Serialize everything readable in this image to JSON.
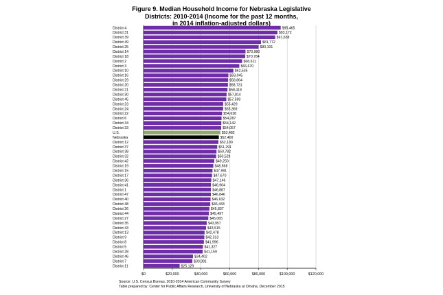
{
  "chart_data": {
    "type": "bar",
    "orientation": "horizontal",
    "title_lines": [
      "Figure 9. Median Household Income for Nebraska Legislative",
      "Districts: 2010-2014 (Income for the past 12 months,",
      "in 2014 inflation-adjusted dollars)"
    ],
    "categories": [
      "District 4",
      "District 31",
      "District 39",
      "District 49",
      "District 25",
      "District 14",
      "District 18",
      "District 2",
      "District 3",
      "District 10",
      "District 16",
      "District 29",
      "District 20",
      "District 21",
      "District 30",
      "District 45",
      "District 23",
      "District 24",
      "District 22",
      "District 6",
      "District 34",
      "District 33",
      "U.S.",
      "Nebraska",
      "District 12",
      "District 37",
      "District 38",
      "District 32",
      "District 42",
      "District 19",
      "District 15",
      "District 17",
      "District 36",
      "District 41",
      "District 1",
      "District 47",
      "District 40",
      "District 48",
      "District 26",
      "District 44",
      "District 27",
      "District 35",
      "District 43",
      "District 13",
      "District 9",
      "District 8",
      "District 5",
      "District 28",
      "District 46",
      "District 7",
      "District 11"
    ],
    "values": [
      95465,
      93172,
      91638,
      81772,
      80101,
      70980,
      70784,
      68611,
      66670,
      62535,
      59045,
      58864,
      58731,
      58418,
      57814,
      57599,
      55429,
      55369,
      54638,
      54287,
      54142,
      54057,
      53482,
      52400,
      52100,
      51291,
      50782,
      50529,
      49250,
      48568,
      47991,
      47670,
      47146,
      46904,
      46887,
      46846,
      46632,
      46443,
      45837,
      45497,
      45065,
      43957,
      43515,
      42478,
      42313,
      41996,
      41327,
      41159,
      34402,
      33981,
      25129
    ],
    "value_labels": [
      "$95,465",
      "$93,172",
      "$91,638",
      "$81,772",
      "$80,101",
      "$70,980",
      "$70,784",
      "$68,611",
      "$66,670",
      "$62,535",
      "$59,045",
      "$58,864",
      "$58,731",
      "$58,418",
      "$57,814",
      "$57,599",
      "$55,429",
      "$55,369",
      "$54,638",
      "$54,287",
      "$54,142",
      "$54,057",
      "$53,482",
      "$52,400",
      "$52,100",
      "$51,291",
      "$50,782",
      "$50,529",
      "$49,250",
      "$48,568",
      "$47,991",
      "$47,670",
      "$47,146",
      "$46,904",
      "$46,887",
      "$46,846",
      "$46,632",
      "$46,443",
      "$45,837",
      "$45,497",
      "$45,065",
      "$43,957",
      "$43,515",
      "$42,478",
      "$42,313",
      "$41,996",
      "$41,327",
      "$41,159",
      "$34,402",
      "$33,981",
      "$25,129"
    ],
    "highlight": {
      "U.S.": "#8fa86e",
      "Nebraska": "#000000"
    },
    "bar_color": "#6f2da8",
    "xlim": [
      0,
      120000
    ],
    "xticks": [
      0,
      20000,
      40000,
      60000,
      80000,
      100000,
      120000
    ],
    "xtick_labels": [
      "$0",
      "$20,000",
      "$40,000",
      "$60,000",
      "$80,000",
      "$100,000",
      "$120,000"
    ],
    "grid": true
  },
  "source_lines": [
    "Source: U.S. Census Bureau, 2010-2014 American Community Survey",
    "Table prepared by: Center for Public Affairs Research, University of Nebraska at Omaha, December 2015"
  ]
}
